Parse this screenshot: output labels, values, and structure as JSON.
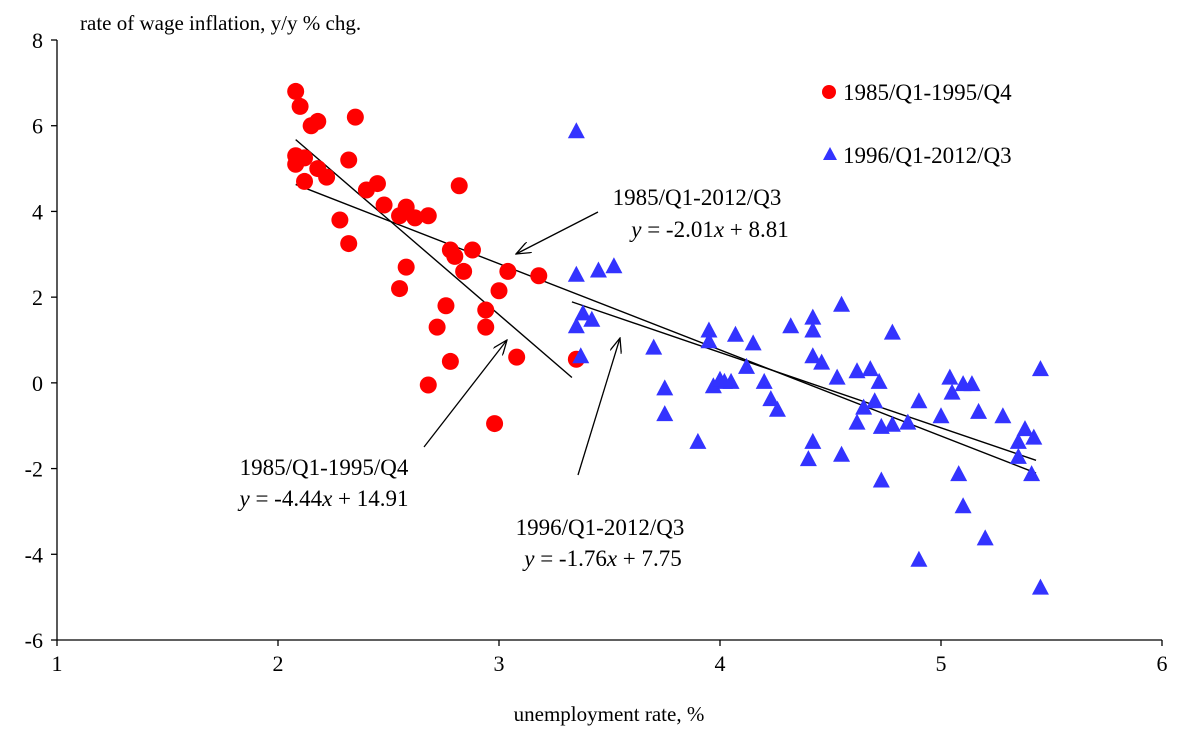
{
  "chart_data": {
    "type": "scatter",
    "title": "",
    "ylabel": "rate of wage inflation, y/y % chg.",
    "xlabel": "unemployment rate, %",
    "xlim": [
      1,
      6
    ],
    "ylim": [
      -6,
      8
    ],
    "xticks": [
      1,
      2,
      3,
      4,
      5,
      6
    ],
    "yticks": [
      -6,
      -4,
      -2,
      0,
      2,
      4,
      6,
      8
    ],
    "xtick_labels": [
      "1",
      "2",
      "3",
      "4",
      "5",
      "6"
    ],
    "ytick_labels": [
      "-6",
      "-4",
      "-2",
      "0",
      "2",
      "4",
      "6",
      "8"
    ],
    "grid": false,
    "legend_position": "top-right",
    "series": [
      {
        "name": "1985/Q1-1995/Q4",
        "marker": "circle",
        "color": "#ff0000",
        "points": [
          [
            2.08,
            6.8
          ],
          [
            2.1,
            6.45
          ],
          [
            2.15,
            6.0
          ],
          [
            2.18,
            6.1
          ],
          [
            2.35,
            6.2
          ],
          [
            2.08,
            5.3
          ],
          [
            2.12,
            5.25
          ],
          [
            2.08,
            5.1
          ],
          [
            2.32,
            5.2
          ],
          [
            2.18,
            5.0
          ],
          [
            2.22,
            4.8
          ],
          [
            2.12,
            4.7
          ],
          [
            2.82,
            4.6
          ],
          [
            2.45,
            4.65
          ],
          [
            2.4,
            4.5
          ],
          [
            2.48,
            4.15
          ],
          [
            2.58,
            4.1
          ],
          [
            2.55,
            3.9
          ],
          [
            2.62,
            3.85
          ],
          [
            2.68,
            3.9
          ],
          [
            2.28,
            3.8
          ],
          [
            2.32,
            3.25
          ],
          [
            2.78,
            3.1
          ],
          [
            2.88,
            3.1
          ],
          [
            2.8,
            2.95
          ],
          [
            2.84,
            2.6
          ],
          [
            2.58,
            2.7
          ],
          [
            2.55,
            2.2
          ],
          [
            3.04,
            2.6
          ],
          [
            3.18,
            2.5
          ],
          [
            3.0,
            2.15
          ],
          [
            2.76,
            1.8
          ],
          [
            2.94,
            1.7
          ],
          [
            2.72,
            1.3
          ],
          [
            2.94,
            1.3
          ],
          [
            3.08,
            0.6
          ],
          [
            3.35,
            0.55
          ],
          [
            2.78,
            0.5
          ],
          [
            2.68,
            -0.05
          ],
          [
            2.98,
            -0.95
          ]
        ]
      },
      {
        "name": "1996/Q1-2012/Q3",
        "marker": "triangle",
        "color": "#3333ff",
        "points": [
          [
            3.35,
            5.85
          ],
          [
            3.35,
            2.5
          ],
          [
            3.45,
            2.6
          ],
          [
            3.52,
            2.7
          ],
          [
            3.38,
            1.6
          ],
          [
            3.42,
            1.45
          ],
          [
            3.35,
            1.3
          ],
          [
            3.37,
            0.6
          ],
          [
            3.7,
            0.8
          ],
          [
            3.75,
            -0.15
          ],
          [
            3.75,
            -0.75
          ],
          [
            3.9,
            -1.4
          ],
          [
            3.95,
            1.2
          ],
          [
            3.95,
            0.95
          ],
          [
            3.97,
            -0.1
          ],
          [
            4.02,
            0.0
          ],
          [
            4.05,
            0.0
          ],
          [
            4.0,
            0.05
          ],
          [
            4.07,
            1.1
          ],
          [
            4.12,
            0.35
          ],
          [
            4.15,
            0.9
          ],
          [
            4.2,
            0.0
          ],
          [
            4.23,
            -0.4
          ],
          [
            4.26,
            -0.65
          ],
          [
            4.32,
            1.3
          ],
          [
            4.42,
            1.5
          ],
          [
            4.42,
            1.2
          ],
          [
            4.42,
            0.6
          ],
          [
            4.46,
            0.45
          ],
          [
            4.42,
            -1.4
          ],
          [
            4.4,
            -1.8
          ],
          [
            4.55,
            1.8
          ],
          [
            4.53,
            0.1
          ],
          [
            4.55,
            -1.7
          ],
          [
            4.62,
            0.25
          ],
          [
            4.68,
            0.3
          ],
          [
            4.62,
            -0.95
          ],
          [
            4.65,
            -0.6
          ],
          [
            4.7,
            -0.45
          ],
          [
            4.72,
            0.0
          ],
          [
            4.73,
            -1.05
          ],
          [
            4.78,
            1.15
          ],
          [
            4.78,
            -1.0
          ],
          [
            4.73,
            -2.3
          ],
          [
            4.85,
            -0.95
          ],
          [
            4.9,
            -0.45
          ],
          [
            4.9,
            -4.15
          ],
          [
            5.0,
            -0.8
          ],
          [
            5.04,
            0.1
          ],
          [
            5.05,
            -0.25
          ],
          [
            5.1,
            -0.05
          ],
          [
            5.14,
            -0.05
          ],
          [
            5.08,
            -2.15
          ],
          [
            5.1,
            -2.9
          ],
          [
            5.17,
            -0.7
          ],
          [
            5.2,
            -3.65
          ],
          [
            5.28,
            -0.8
          ],
          [
            5.35,
            -1.4
          ],
          [
            5.35,
            -1.75
          ],
          [
            5.38,
            -1.1
          ],
          [
            5.42,
            -1.3
          ],
          [
            5.41,
            -2.15
          ],
          [
            5.45,
            0.3
          ],
          [
            5.45,
            -4.8
          ]
        ]
      }
    ],
    "regression_lines": [
      {
        "label": "1985/Q1-2012/Q3",
        "equation": "y = -2.01x + 8.81",
        "x_range": [
          2.08,
          5.43
        ]
      },
      {
        "label": "1985/Q1-1995/Q4",
        "equation": "y = -4.44x + 14.91",
        "x_range": [
          2.08,
          3.33
        ]
      },
      {
        "label": "1996/Q1-2012/Q3",
        "equation": "y = -1.76x + 7.75",
        "x_range": [
          3.33,
          5.43
        ]
      }
    ]
  },
  "legend": {
    "items": [
      {
        "label": "1985/Q1-1995/Q4"
      },
      {
        "label": "1996/Q1-2012/Q3"
      }
    ]
  },
  "annotations": [
    {
      "line1": "1985/Q1-2012/Q3",
      "eq_y": "y",
      "eq_mid": " = -2.01",
      "eq_x": "x",
      "eq_end": " + 8.81"
    },
    {
      "line1": "1985/Q1-1995/Q4",
      "eq_y": "y",
      "eq_mid": " = -4.44",
      "eq_x": "x",
      "eq_end": " + 14.91"
    },
    {
      "line1": "1996/Q1-2012/Q3",
      "eq_y": "y",
      "eq_mid": " = -1.76",
      "eq_x": "x",
      "eq_end": " + 7.75"
    }
  ]
}
